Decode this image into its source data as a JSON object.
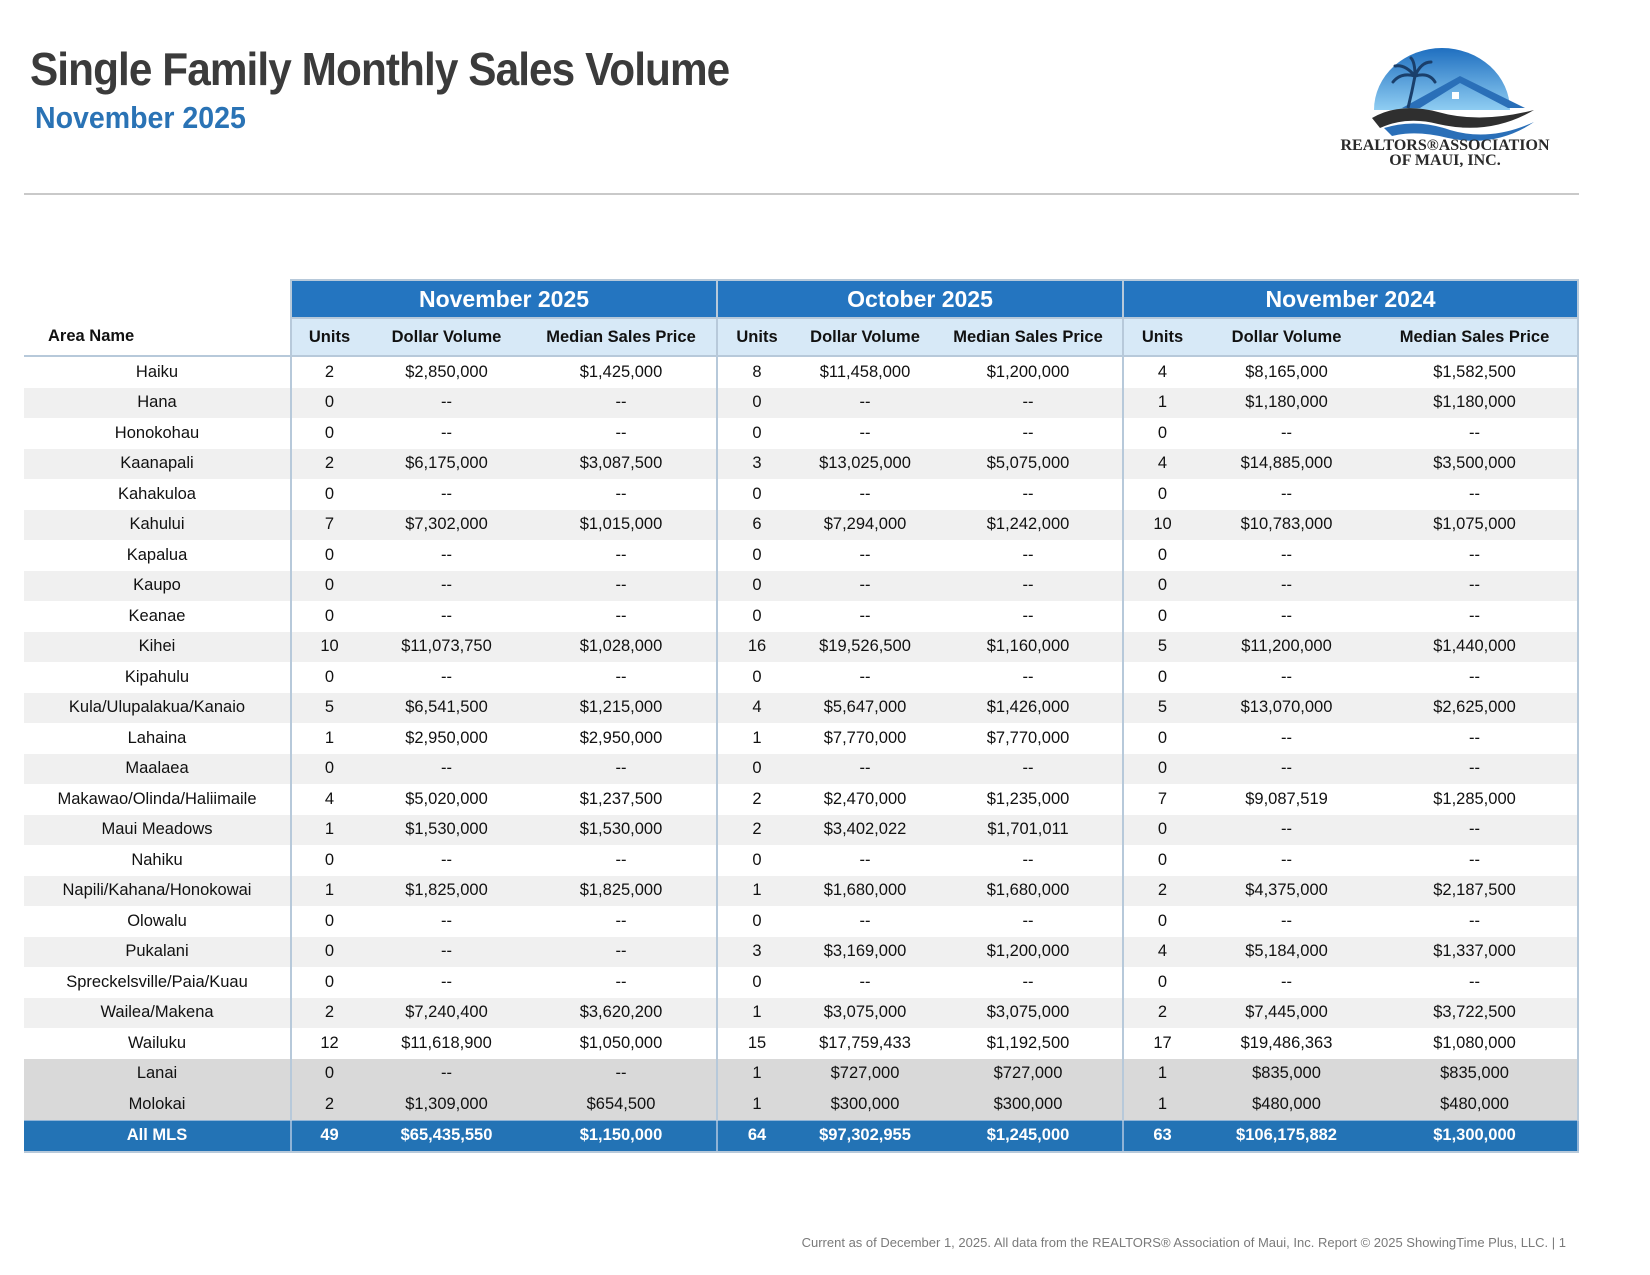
{
  "header": {
    "title": "Single Family Monthly Sales Volume",
    "subtitle": "November 2025"
  },
  "logo": {
    "line1": "REALTORS®ASSOCIATION",
    "line2": "OF MAUI, INC.",
    "colors": {
      "sky": "#3a8fd6",
      "roof": "#2a6fb8",
      "wave": "#3a3a3a"
    }
  },
  "table": {
    "periods": [
      "November 2025",
      "October 2025",
      "November 2024"
    ],
    "area_header": "Area Name",
    "column_headers": [
      "Units",
      "Dollar Volume",
      "Median Sales Price"
    ],
    "rows": [
      {
        "area": "Haiku",
        "values": [
          "2",
          "$2,850,000",
          "$1,425,000",
          "8",
          "$11,458,000",
          "$1,200,000",
          "4",
          "$8,165,000",
          "$1,582,500"
        ]
      },
      {
        "area": "Hana",
        "values": [
          "0",
          "--",
          "--",
          "0",
          "--",
          "--",
          "1",
          "$1,180,000",
          "$1,180,000"
        ]
      },
      {
        "area": "Honokohau",
        "values": [
          "0",
          "--",
          "--",
          "0",
          "--",
          "--",
          "0",
          "--",
          "--"
        ]
      },
      {
        "area": "Kaanapali",
        "values": [
          "2",
          "$6,175,000",
          "$3,087,500",
          "3",
          "$13,025,000",
          "$5,075,000",
          "4",
          "$14,885,000",
          "$3,500,000"
        ]
      },
      {
        "area": "Kahakuloa",
        "values": [
          "0",
          "--",
          "--",
          "0",
          "--",
          "--",
          "0",
          "--",
          "--"
        ]
      },
      {
        "area": "Kahului",
        "values": [
          "7",
          "$7,302,000",
          "$1,015,000",
          "6",
          "$7,294,000",
          "$1,242,000",
          "10",
          "$10,783,000",
          "$1,075,000"
        ]
      },
      {
        "area": "Kapalua",
        "values": [
          "0",
          "--",
          "--",
          "0",
          "--",
          "--",
          "0",
          "--",
          "--"
        ]
      },
      {
        "area": "Kaupo",
        "values": [
          "0",
          "--",
          "--",
          "0",
          "--",
          "--",
          "0",
          "--",
          "--"
        ]
      },
      {
        "area": "Keanae",
        "values": [
          "0",
          "--",
          "--",
          "0",
          "--",
          "--",
          "0",
          "--",
          "--"
        ]
      },
      {
        "area": "Kihei",
        "values": [
          "10",
          "$11,073,750",
          "$1,028,000",
          "16",
          "$19,526,500",
          "$1,160,000",
          "5",
          "$11,200,000",
          "$1,440,000"
        ]
      },
      {
        "area": "Kipahulu",
        "values": [
          "0",
          "--",
          "--",
          "0",
          "--",
          "--",
          "0",
          "--",
          "--"
        ]
      },
      {
        "area": "Kula/Ulupalakua/Kanaio",
        "values": [
          "5",
          "$6,541,500",
          "$1,215,000",
          "4",
          "$5,647,000",
          "$1,426,000",
          "5",
          "$13,070,000",
          "$2,625,000"
        ]
      },
      {
        "area": "Lahaina",
        "values": [
          "1",
          "$2,950,000",
          "$2,950,000",
          "1",
          "$7,770,000",
          "$7,770,000",
          "0",
          "--",
          "--"
        ]
      },
      {
        "area": "Maalaea",
        "values": [
          "0",
          "--",
          "--",
          "0",
          "--",
          "--",
          "0",
          "--",
          "--"
        ]
      },
      {
        "area": "Makawao/Olinda/Haliimaile",
        "values": [
          "4",
          "$5,020,000",
          "$1,237,500",
          "2",
          "$2,470,000",
          "$1,235,000",
          "7",
          "$9,087,519",
          "$1,285,000"
        ]
      },
      {
        "area": "Maui Meadows",
        "values": [
          "1",
          "$1,530,000",
          "$1,530,000",
          "2",
          "$3,402,022",
          "$1,701,011",
          "0",
          "--",
          "--"
        ]
      },
      {
        "area": "Nahiku",
        "values": [
          "0",
          "--",
          "--",
          "0",
          "--",
          "--",
          "0",
          "--",
          "--"
        ]
      },
      {
        "area": "Napili/Kahana/Honokowai",
        "values": [
          "1",
          "$1,825,000",
          "$1,825,000",
          "1",
          "$1,680,000",
          "$1,680,000",
          "2",
          "$4,375,000",
          "$2,187,500"
        ]
      },
      {
        "area": "Olowalu",
        "values": [
          "0",
          "--",
          "--",
          "0",
          "--",
          "--",
          "0",
          "--",
          "--"
        ]
      },
      {
        "area": "Pukalani",
        "values": [
          "0",
          "--",
          "--",
          "3",
          "$3,169,000",
          "$1,200,000",
          "4",
          "$5,184,000",
          "$1,337,000"
        ]
      },
      {
        "area": "Spreckelsville/Paia/Kuau",
        "values": [
          "0",
          "--",
          "--",
          "0",
          "--",
          "--",
          "0",
          "--",
          "--"
        ]
      },
      {
        "area": "Wailea/Makena",
        "values": [
          "2",
          "$7,240,400",
          "$3,620,200",
          "1",
          "$3,075,000",
          "$3,075,000",
          "2",
          "$7,445,000",
          "$3,722,500"
        ]
      },
      {
        "area": "Wailuku",
        "values": [
          "12",
          "$11,618,900",
          "$1,050,000",
          "15",
          "$17,759,433",
          "$1,192,500",
          "17",
          "$19,486,363",
          "$1,080,000"
        ]
      },
      {
        "area": "Lanai",
        "island": true,
        "values": [
          "0",
          "--",
          "--",
          "1",
          "$727,000",
          "$727,000",
          "1",
          "$835,000",
          "$835,000"
        ]
      },
      {
        "area": "Molokai",
        "island": true,
        "values": [
          "2",
          "$1,309,000",
          "$654,500",
          "1",
          "$300,000",
          "$300,000",
          "1",
          "$480,000",
          "$480,000"
        ]
      }
    ],
    "total": {
      "area": "All MLS",
      "values": [
        "49",
        "$65,435,550",
        "$1,150,000",
        "64",
        "$97,302,955",
        "$1,245,000",
        "63",
        "$106,175,882",
        "$1,300,000"
      ]
    }
  },
  "footer": {
    "text": "Current as of December 1, 2025. All data from the REALTORS® Association of Maui, Inc. Report © 2025 ShowingTime Plus, LLC.  |  1"
  }
}
